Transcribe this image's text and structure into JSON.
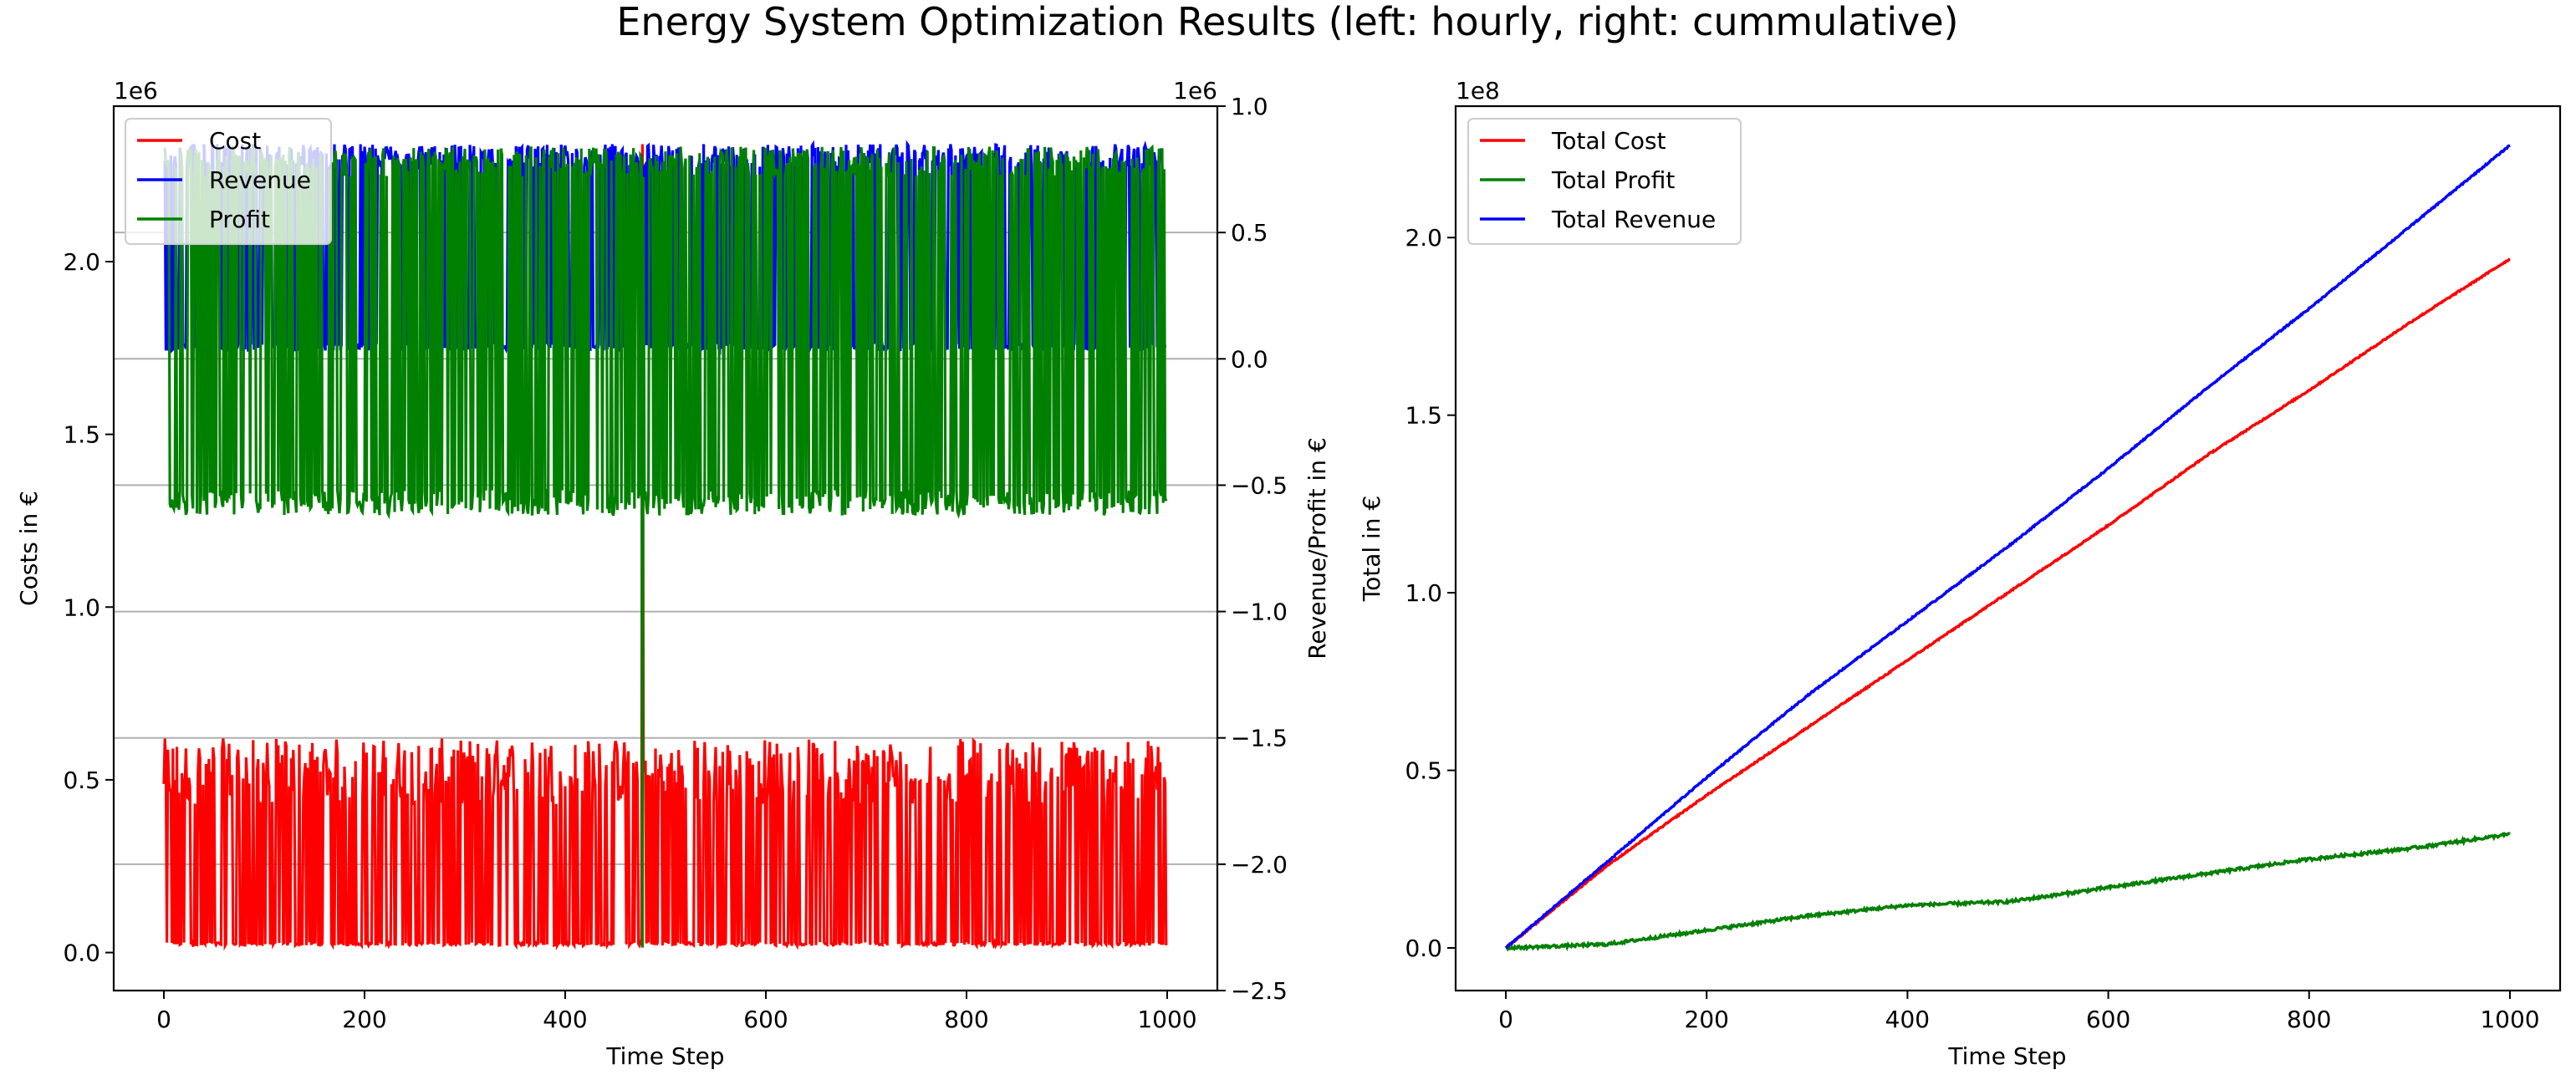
{
  "figure": {
    "title": "Energy System Optimization Results (left: hourly, right: cummulative)"
  },
  "chart_data": [
    {
      "type": "line",
      "panel": "left",
      "xlabel": "Time Step",
      "ylabel_left": "Costs in €",
      "ylabel_right": "Revenue/Profit in €",
      "offset_left": "1e6",
      "offset_right": "1e6",
      "xlim": [
        -50,
        1050
      ],
      "ylim_left": [
        -0.11,
        2.45
      ],
      "ylim_right": [
        -2.5,
        1.0
      ],
      "xticks": [
        0,
        200,
        400,
        600,
        800,
        1000
      ],
      "xticklabels": [
        "0",
        "200",
        "400",
        "600",
        "800",
        "1000"
      ],
      "yticks_left": [
        0.0,
        0.5,
        1.0,
        1.5,
        2.0
      ],
      "yticklabels_left": [
        "0.0",
        "0.5",
        "1.0",
        "1.5",
        "2.0"
      ],
      "yticks_right": [
        -2.5,
        -2.0,
        -1.5,
        -1.0,
        -0.5,
        0.0,
        0.5,
        1.0
      ],
      "yticklabels_right": [
        "−2.5",
        "−2.0",
        "−1.5",
        "−1.0",
        "−0.5",
        "0.0",
        "0.5",
        "1.0"
      ],
      "grid": "right-axis horizontal",
      "legend_position": "top-left",
      "series": [
        {
          "name": "Cost",
          "axis": "left",
          "color": "#ff0000",
          "x": [
            0,
            100,
            200,
            300,
            400,
            470,
            475,
            478,
            485,
            600,
            700,
            800,
            900,
            995
          ],
          "low": 0.02,
          "high_min": 0.43,
          "high_max": 0.62,
          "y": [
            0.47,
            0.02,
            0.58,
            0.02,
            0.61,
            0.02,
            2.34,
            0.02,
            0.45,
            0.02,
            0.56,
            0.02,
            0.6,
            0.44
          ]
        },
        {
          "name": "Revenue",
          "axis": "right",
          "color": "#0000ff",
          "x": [
            0,
            100,
            200,
            300,
            400,
            478,
            600,
            700,
            800,
            900,
            995
          ],
          "low": 0.03,
          "high_min": 0.76,
          "high_max": 0.85,
          "y": [
            0.3,
            0.82,
            0.03,
            0.83,
            0.03,
            0.05,
            0.82,
            0.03,
            0.83,
            0.03,
            0.65
          ]
        },
        {
          "name": "Profit",
          "axis": "right",
          "color": "#008000",
          "x": [
            0,
            100,
            200,
            300,
            400,
            478,
            480,
            600,
            700,
            800,
            900,
            995
          ],
          "low_min": -0.52,
          "low_max": -0.62,
          "high_min": 0.72,
          "high_max": 0.84,
          "y": [
            -0.2,
            0.8,
            -0.55,
            0.8,
            -0.6,
            -2.33,
            -0.3,
            0.8,
            -0.55,
            0.8,
            -0.55,
            0.6
          ]
        }
      ]
    },
    {
      "type": "line",
      "panel": "right",
      "xlabel": "Time Step",
      "ylabel": "Total in €",
      "offset": "1e8",
      "xlim": [
        -50,
        1050
      ],
      "ylim": [
        -0.12,
        2.37
      ],
      "xticks": [
        0,
        200,
        400,
        600,
        800,
        1000
      ],
      "xticklabels": [
        "0",
        "200",
        "400",
        "600",
        "800",
        "1000"
      ],
      "yticks": [
        0.0,
        0.5,
        1.0,
        1.5,
        2.0
      ],
      "yticklabels": [
        "0.0",
        "0.5",
        "1.0",
        "1.5",
        "2.0"
      ],
      "grid": false,
      "legend_position": "top-left",
      "series": [
        {
          "name": "Total Cost",
          "color": "#ff0000",
          "x": [
            0,
            100,
            200,
            300,
            400,
            500,
            600,
            700,
            800,
            900,
            1000
          ],
          "y": [
            0.0,
            0.23,
            0.43,
            0.62,
            0.81,
            1.0,
            1.19,
            1.39,
            1.57,
            1.76,
            1.94
          ]
        },
        {
          "name": "Total Profit",
          "color": "#008000",
          "x": [
            0,
            100,
            200,
            300,
            400,
            500,
            600,
            700,
            800,
            900,
            1000
          ],
          "y": [
            0.0,
            0.01,
            0.05,
            0.09,
            0.12,
            0.13,
            0.17,
            0.21,
            0.25,
            0.28,
            0.32
          ]
        },
        {
          "name": "Total Revenue",
          "color": "#0000ff",
          "x": [
            0,
            100,
            200,
            300,
            400,
            500,
            600,
            700,
            800,
            900,
            1000
          ],
          "y": [
            0.0,
            0.24,
            0.48,
            0.71,
            0.92,
            1.13,
            1.35,
            1.58,
            1.8,
            2.03,
            2.26
          ]
        }
      ]
    }
  ]
}
